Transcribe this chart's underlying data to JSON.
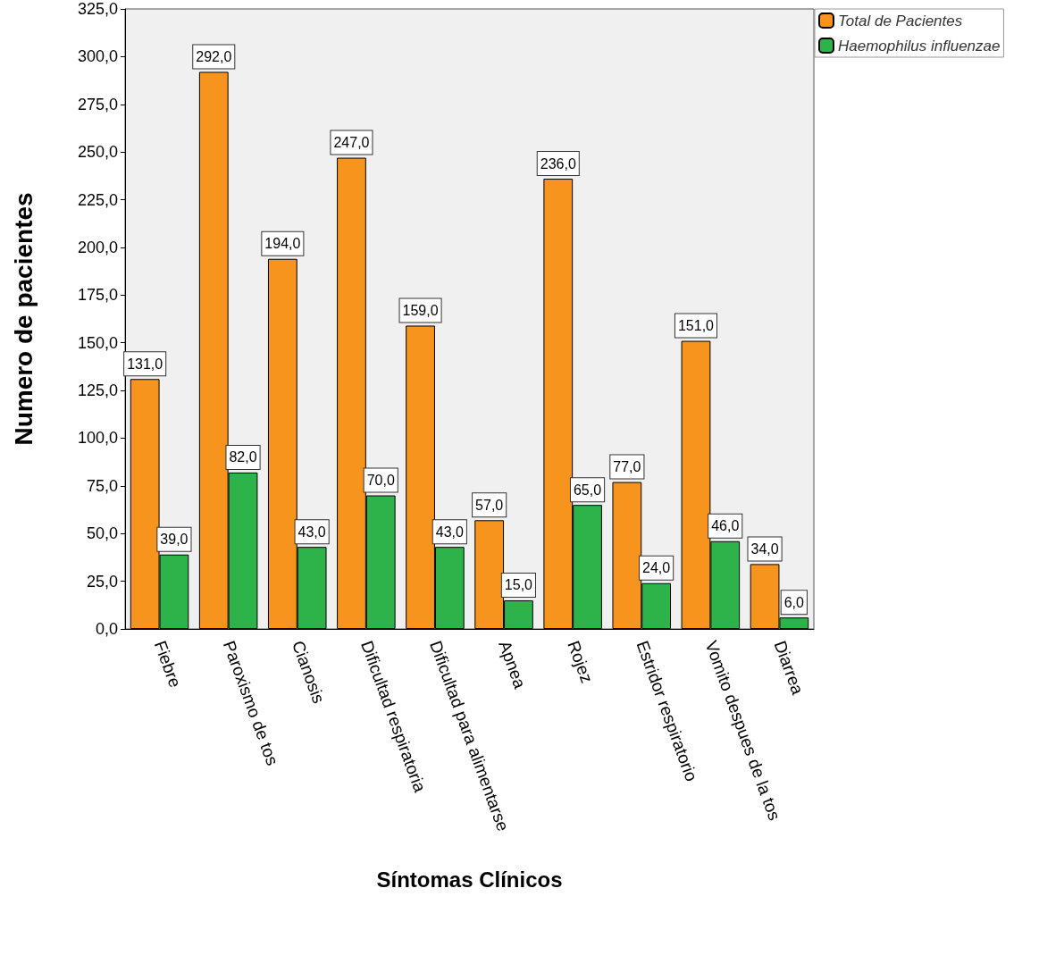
{
  "chart_data": {
    "type": "bar",
    "xlabel": "Síntomas Clínicos",
    "ylabel": "Numero de pacientes",
    "categories": [
      "Fiebre",
      "Paroxismo de tos",
      "Cianosis",
      "Dificultad respiratoria",
      "Dificultad para alimentarse",
      "Apnea",
      "Rojez",
      "Estridor respiratorio",
      "Vomito despues de la tos",
      "Diarrea"
    ],
    "series": [
      {
        "name": "Total de Pacientes",
        "color": "#f7941d",
        "values": [
          131,
          292,
          194,
          247,
          159,
          57,
          236,
          77,
          151,
          34
        ],
        "value_labels": [
          "131,0",
          "292,0",
          "194,0",
          "247,0",
          "159,0",
          "57,0",
          "236,0",
          "77,0",
          "151,0",
          "34,0"
        ]
      },
      {
        "name": "Haemophilus influenzae",
        "color": "#2db34a",
        "values": [
          39,
          82,
          43,
          70,
          43,
          15,
          65,
          24,
          46,
          6
        ],
        "value_labels": [
          "39,0",
          "82,0",
          "43,0",
          "70,0",
          "43,0",
          "15,0",
          "65,0",
          "24,0",
          "46,0",
          "6,0"
        ]
      }
    ],
    "ylim": [
      0,
      325
    ],
    "yticks": [
      {
        "value": 0,
        "label": "0,0"
      },
      {
        "value": 25,
        "label": "25,0"
      },
      {
        "value": 50,
        "label": "50,0"
      },
      {
        "value": 75,
        "label": "75,0"
      },
      {
        "value": 100,
        "label": "100,0"
      },
      {
        "value": 125,
        "label": "125,0"
      },
      {
        "value": 150,
        "label": "150,0"
      },
      {
        "value": 175,
        "label": "175,0"
      },
      {
        "value": 200,
        "label": "200,0"
      },
      {
        "value": 225,
        "label": "225,0"
      },
      {
        "value": 250,
        "label": "250,0"
      },
      {
        "value": 275,
        "label": "275,0"
      },
      {
        "value": 300,
        "label": "300,0"
      },
      {
        "value": 325,
        "label": "325,0"
      }
    ],
    "legend": "top right"
  }
}
